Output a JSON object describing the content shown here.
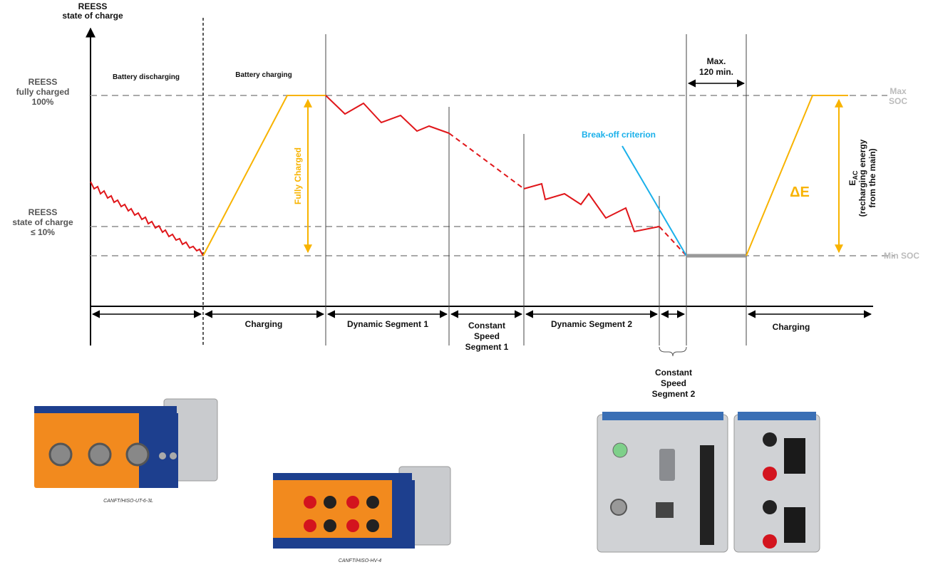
{
  "y_axis_label": [
    "REESS",
    "state of charge"
  ],
  "levels": {
    "full": [
      "REESS",
      "fully charged",
      "100%"
    ],
    "low": [
      "REESS",
      "state of charge",
      "≤ 10%"
    ],
    "max_soc": [
      "Max",
      "SOC"
    ],
    "min_soc": "Min SOC"
  },
  "phases": [
    "Battery discharging",
    "Battery charging"
  ],
  "annotations": {
    "fully_charged": "Fully Charged",
    "break_off": "Break-off criterion",
    "max_time": [
      "Max.",
      "120 min."
    ],
    "delta_e": "ΔE",
    "e_ac": {
      "symbol": "E",
      "subscript": "AC",
      "lines": [
        "(recharging energy",
        "from the main)"
      ]
    }
  },
  "segments": [
    [
      "Charging"
    ],
    [
      "Dynamic Segment 1"
    ],
    [
      "Constant",
      "Speed",
      "Segment 1"
    ],
    [
      "Dynamic Segment 2"
    ],
    [
      "Charging"
    ],
    [
      "Constant",
      "Speed",
      "Segment 2"
    ]
  ],
  "captions": [
    "CANFT/HISO-UT-6-3L",
    "CANFT/HISO-HV-4"
  ]
}
